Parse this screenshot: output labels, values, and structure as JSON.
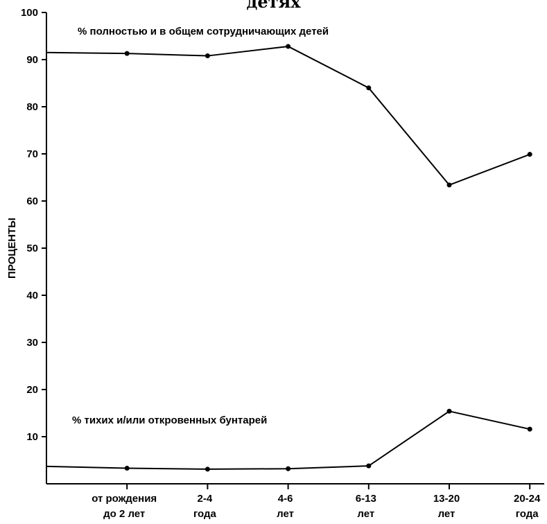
{
  "chart_data": {
    "type": "line",
    "title": "детях",
    "ylabel": "ПРОЦЕНТЫ",
    "ylim": [
      0,
      100
    ],
    "yticks": [
      10,
      20,
      30,
      40,
      50,
      60,
      70,
      80,
      90,
      100
    ],
    "categories": [
      [
        "",
        ""
      ],
      [
        "от рождения",
        "до 2 лет"
      ],
      [
        "2-4",
        "года"
      ],
      [
        "4-6",
        "лет"
      ],
      [
        "6-13",
        "лет"
      ],
      [
        "13-20",
        "лет"
      ],
      [
        "20-24",
        "года"
      ]
    ],
    "series": [
      {
        "name": "% полностью и в общем сотрудничающих детей",
        "values": [
          91.5,
          91.3,
          90.8,
          92.8,
          84.0,
          63.4,
          69.9
        ]
      },
      {
        "name": "% тихих и/или откровенных бунтарей",
        "values": [
          3.7,
          3.3,
          3.1,
          3.2,
          3.8,
          15.4,
          11.6
        ]
      }
    ],
    "grid": false,
    "legend": "inline"
  }
}
